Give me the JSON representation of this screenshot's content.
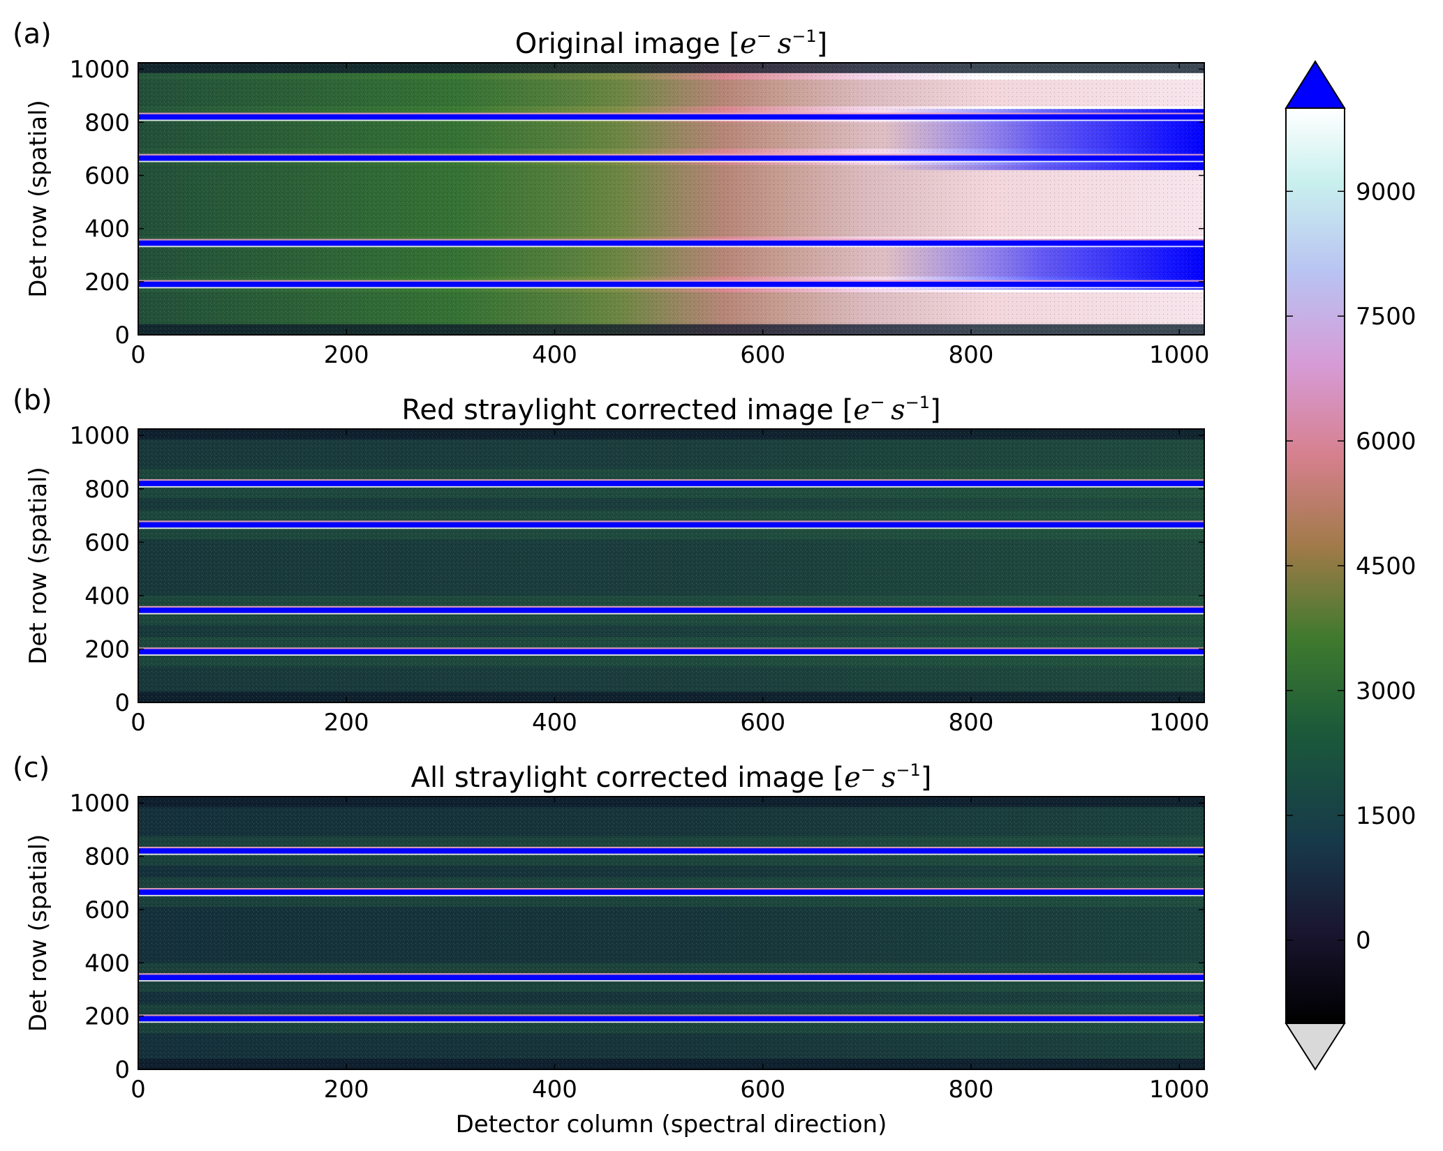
{
  "chart_data": [
    {
      "type": "heatmap",
      "panel_label": "(a)",
      "title_text": "Original image ",
      "title_unit": {
        "open": "[",
        "base": "e",
        "base_sup": "−",
        "rate": "s",
        "rate_sup": "−1",
        "close": "]"
      },
      "xlabel": "",
      "ylabel": "Det row (spatial)",
      "xlim": [
        0,
        1024
      ],
      "ylim": [
        0,
        1024
      ],
      "xticks": [
        "0",
        "200",
        "400",
        "600",
        "800",
        "1000"
      ],
      "yticks": [
        "0",
        "200",
        "400",
        "600",
        "800",
        "1000"
      ],
      "saturated_bands_rows": [
        190,
        345,
        665,
        820
      ],
      "approx_background_counts": {
        "left_edge": 2200,
        "right_edge": 8500
      }
    },
    {
      "type": "heatmap",
      "panel_label": "(b)",
      "title_text": "Red straylight corrected image ",
      "title_unit": {
        "open": "[",
        "base": "e",
        "base_sup": "−",
        "rate": "s",
        "rate_sup": "−1",
        "close": "]"
      },
      "xlabel": "",
      "ylabel": "Det row (spatial)",
      "xlim": [
        0,
        1024
      ],
      "ylim": [
        0,
        1024
      ],
      "xticks": [
        "0",
        "200",
        "400",
        "600",
        "800",
        "1000"
      ],
      "yticks": [
        "0",
        "200",
        "400",
        "600",
        "800",
        "1000"
      ],
      "saturated_bands_rows": [
        190,
        345,
        665,
        820
      ],
      "approx_background_counts": {
        "left_edge": 1400,
        "right_edge": 1500
      }
    },
    {
      "type": "heatmap",
      "panel_label": "(c)",
      "title_text": "All straylight corrected image ",
      "title_unit": {
        "open": "[",
        "base": "e",
        "base_sup": "−",
        "rate": "s",
        "rate_sup": "−1",
        "close": "]"
      },
      "xlabel": "Detector column (spectral direction)",
      "ylabel": "Det row (spatial)",
      "xlim": [
        0,
        1024
      ],
      "ylim": [
        0,
        1024
      ],
      "xticks": [
        "0",
        "200",
        "400",
        "600",
        "800",
        "1000"
      ],
      "yticks": [
        "0",
        "200",
        "400",
        "600",
        "800",
        "1000"
      ],
      "saturated_bands_rows": [
        190,
        345,
        665,
        820
      ],
      "approx_background_counts": {
        "left_edge": 1000,
        "right_edge": 1300
      }
    }
  ],
  "colorbar": {
    "range": [
      -1000,
      10000
    ],
    "ticks": [
      "0",
      "1500",
      "3000",
      "4500",
      "6000",
      "7500",
      "9000"
    ],
    "over_color": "#0000ff",
    "under_color": "#d9d9d9",
    "colormap": "cubehelix",
    "extend": "both"
  }
}
